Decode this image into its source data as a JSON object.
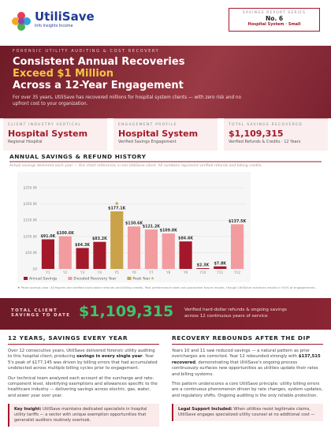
{
  "header": {
    "brand": "UtiliSave",
    "tagline": "Info Insights Income",
    "series_label": "SAVINGS REPORT SERIES",
    "issue": "No. 6",
    "issue_subtitle": "Hospital System · Small"
  },
  "hero": {
    "kicker": "FORENSIC UTILITY AUDITING & COST RECOVERY",
    "headline_1": "Consistent Annual Recoveries",
    "headline_2": "Exceed $1 Million",
    "headline_3": "Across a 12-Year Engagement",
    "intro": "For over 35 years, UtiliSave has recovered millions for hospital system clients — with zero risk and no upfront cost to your organization."
  },
  "stats": [
    {
      "label": "CLIENT INDUSTRY VERTICAL",
      "value": "Hospital System",
      "note": "Regional Hospital"
    },
    {
      "label": "ENGAGEMENT PROFILE",
      "value": "Hospital System",
      "note": "Verified Savings Engagement"
    },
    {
      "label": "TOTAL SAVINGS RECOVERED",
      "value": "$1,109,315",
      "note": "Verified Refunds & Credits · 12 Years"
    }
  ],
  "chart_data": {
    "type": "bar",
    "title": "ANNUAL SAVINGS & REFUND HISTORY",
    "subtitle": "Actual savings delivered each year — this chart references a real UtiliSave client. All numbers represent verified refunds and billing credits.",
    "categories": [
      "Y1",
      "Y2",
      "Y3",
      "Y4",
      "Y5",
      "Y6",
      "Y7",
      "Y8",
      "Y9",
      "Y10",
      "Y11",
      "Y12"
    ],
    "values": [
      91000,
      100600,
      64300,
      83200,
      177100,
      130600,
      121200,
      109000,
      84600,
      2300,
      7800,
      137500
    ],
    "value_labels": [
      "$91.0K",
      "$100.6K",
      "$64.3K",
      "$83.2K",
      "$177.1K",
      "$130.6K",
      "$121.2K",
      "$109.0K",
      "$84.6K",
      "$2.3K",
      "$7.8K",
      "$137.5K"
    ],
    "colors": [
      "#a3192a",
      "#f29ca0",
      "#a3192a",
      "#a3192a",
      "#c9a24a",
      "#f29ca0",
      "#f29ca0",
      "#f29ca0",
      "#a3192a",
      "#a3192a",
      "#a3192a",
      "#f29ca0"
    ],
    "legend": [
      {
        "name": "Annual Savings",
        "color": "#a3192a"
      },
      {
        "name": "Elevated Recovery Year",
        "color": "#f29ca0"
      },
      {
        "name": "Peak Year",
        "color": "#c9a24a"
      }
    ],
    "ylim": [
      0,
      250000
    ],
    "yticks": [
      {
        "value": 0,
        "label": "$0"
      },
      {
        "value": 50000,
        "label": "$50.0K"
      },
      {
        "value": 100000,
        "label": "$100.0K"
      },
      {
        "value": 150000,
        "label": "$150.0K"
      },
      {
        "value": 200000,
        "label": "$200.0K"
      },
      {
        "value": 250000,
        "label": "$250.0K"
      }
    ],
    "grid": true,
    "footnote": "★ Peak savings year. All figures are verified hard-dollar refunds and billing credits. Past performance does not guarantee future results, though UtiliSave achieves results in 94% of engagements."
  },
  "total": {
    "label": "TOTAL CLIENT SAVINGS TO DATE",
    "value": "$1,109,315",
    "note": "Verified hard-dollar refunds & ongoing savings across 12 continuous years of service"
  },
  "left": {
    "heading": "12 YEARS, SAVINGS EVERY YEAR",
    "paragraphs": [
      [
        "Over 12 consecutive years, UtiliSave delivered forensic utility auditing to this hospital client, producing ",
        "savings in every single year",
        ". Year 5's peak of $177,145 was driven by billing errors that had accumulated undetected across multiple billing cycles prior to engagement."
      ],
      [
        "Our technical team analyzed each account at the surcharge and rate-component level, identifying exemptions and allowances specific to the healthcare industry — delivering savings across electric, gas, water, and sewer year over year."
      ]
    ],
    "callout": [
      "",
      "Key Insight:",
      " UtiliSave maintains dedicated specialists in hospital utility tariffs — a sector with unique exemption opportunities that generalist auditors routinely overlook."
    ]
  },
  "right": {
    "heading": "RECOVERY REBOUNDS AFTER THE DIP",
    "paragraphs": [
      [
        "Years 10 and 11 saw reduced savings — a natural pattern as prior overcharges are corrected. Year 12 rebounded strongly with ",
        "$137,515 recovered",
        ", demonstrating that UtiliSave's ongoing process continuously surfaces new opportunities as utilities update their rates and billing systems."
      ],
      [
        "This pattern underscores a core UtiliSave principle: utility billing errors are a continuous phenomenon driven by rate changes, system updates, and regulatory shifts. Ongoing auditing is the only reliable protection."
      ]
    ],
    "callout": [
      "",
      "Legal Support Included:",
      " When utilities resist legitimate claims, UtiliSave engages specialized utility counsel at no additional cost —"
    ]
  }
}
